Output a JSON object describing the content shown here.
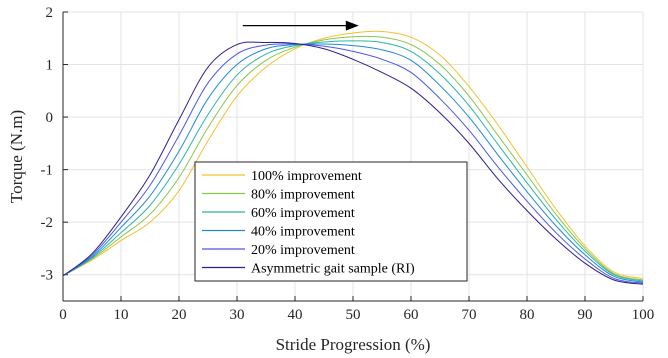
{
  "chart_data": {
    "type": "line",
    "xlabel": "Stride Progression (%)",
    "ylabel": "Torque (N.m)",
    "xlim": [
      0,
      100
    ],
    "ylim": [
      -3.5,
      2
    ],
    "xticks": [
      0,
      10,
      20,
      30,
      40,
      50,
      60,
      70,
      80,
      90,
      100
    ],
    "yticks": [
      -3,
      -2,
      -1,
      0,
      1,
      2
    ],
    "grid": true,
    "legend_position": "bottom-center",
    "annotation": {
      "type": "arrow",
      "from": [
        31,
        1.74
      ],
      "to": [
        51,
        1.74
      ]
    },
    "series": [
      {
        "name": "100% improvement",
        "color": "#f2c12e",
        "x": [
          0,
          5,
          10,
          15,
          20,
          25,
          30,
          35,
          40,
          45,
          50,
          55,
          60,
          65,
          70,
          75,
          80,
          85,
          90,
          95,
          100
        ],
        "y": [
          -3.02,
          -2.72,
          -2.35,
          -2.0,
          -1.4,
          -0.45,
          0.4,
          0.95,
          1.3,
          1.5,
          1.6,
          1.63,
          1.52,
          1.18,
          0.58,
          -0.15,
          -0.95,
          -1.75,
          -2.45,
          -2.95,
          -3.07
        ]
      },
      {
        "name": "80% improvement",
        "color": "#86c74c",
        "x": [
          0,
          5,
          10,
          15,
          20,
          25,
          30,
          35,
          40,
          45,
          50,
          55,
          60,
          65,
          70,
          75,
          80,
          85,
          90,
          95,
          100
        ],
        "y": [
          -3.02,
          -2.7,
          -2.28,
          -1.85,
          -1.15,
          -0.2,
          0.6,
          1.08,
          1.33,
          1.47,
          1.53,
          1.52,
          1.38,
          1.0,
          0.4,
          -0.35,
          -1.1,
          -1.85,
          -2.5,
          -2.98,
          -3.1
        ]
      },
      {
        "name": "60% improvement",
        "color": "#2cb5a5",
        "x": [
          0,
          5,
          10,
          15,
          20,
          25,
          30,
          35,
          40,
          45,
          50,
          55,
          60,
          65,
          70,
          75,
          80,
          85,
          90,
          95,
          100
        ],
        "y": [
          -3.02,
          -2.68,
          -2.2,
          -1.68,
          -0.9,
          0.05,
          0.8,
          1.2,
          1.36,
          1.43,
          1.45,
          1.42,
          1.25,
          0.82,
          0.22,
          -0.52,
          -1.25,
          -1.95,
          -2.55,
          -3.0,
          -3.12
        ]
      },
      {
        "name": "40% improvement",
        "color": "#1f8ad8",
        "x": [
          0,
          5,
          10,
          15,
          20,
          25,
          30,
          35,
          40,
          45,
          50,
          55,
          60,
          65,
          70,
          75,
          80,
          85,
          90,
          95,
          100
        ],
        "y": [
          -3.02,
          -2.66,
          -2.1,
          -1.5,
          -0.65,
          0.35,
          1.0,
          1.3,
          1.38,
          1.39,
          1.36,
          1.28,
          1.08,
          0.6,
          0.0,
          -0.72,
          -1.42,
          -2.07,
          -2.62,
          -3.03,
          -3.14
        ]
      },
      {
        "name": "20% improvement",
        "color": "#4a58e6",
        "x": [
          0,
          5,
          10,
          15,
          20,
          25,
          30,
          35,
          40,
          45,
          50,
          55,
          60,
          65,
          70,
          75,
          80,
          85,
          90,
          95,
          100
        ],
        "y": [
          -3.02,
          -2.63,
          -2.0,
          -1.3,
          -0.35,
          0.65,
          1.2,
          1.37,
          1.39,
          1.35,
          1.25,
          1.1,
          0.85,
          0.35,
          -0.25,
          -0.95,
          -1.6,
          -2.2,
          -2.7,
          -3.07,
          -3.16
        ]
      },
      {
        "name": "Asymmetric gait sample (RI)",
        "color": "#2e1f8c",
        "x": [
          0,
          5,
          10,
          15,
          20,
          25,
          30,
          35,
          40,
          45,
          50,
          55,
          60,
          65,
          70,
          75,
          80,
          85,
          90,
          95,
          100
        ],
        "y": [
          -3.02,
          -2.6,
          -1.9,
          -1.1,
          -0.05,
          0.95,
          1.38,
          1.42,
          1.4,
          1.3,
          1.1,
          0.85,
          0.55,
          0.08,
          -0.5,
          -1.18,
          -1.78,
          -2.32,
          -2.78,
          -3.1,
          -3.18
        ]
      }
    ]
  }
}
